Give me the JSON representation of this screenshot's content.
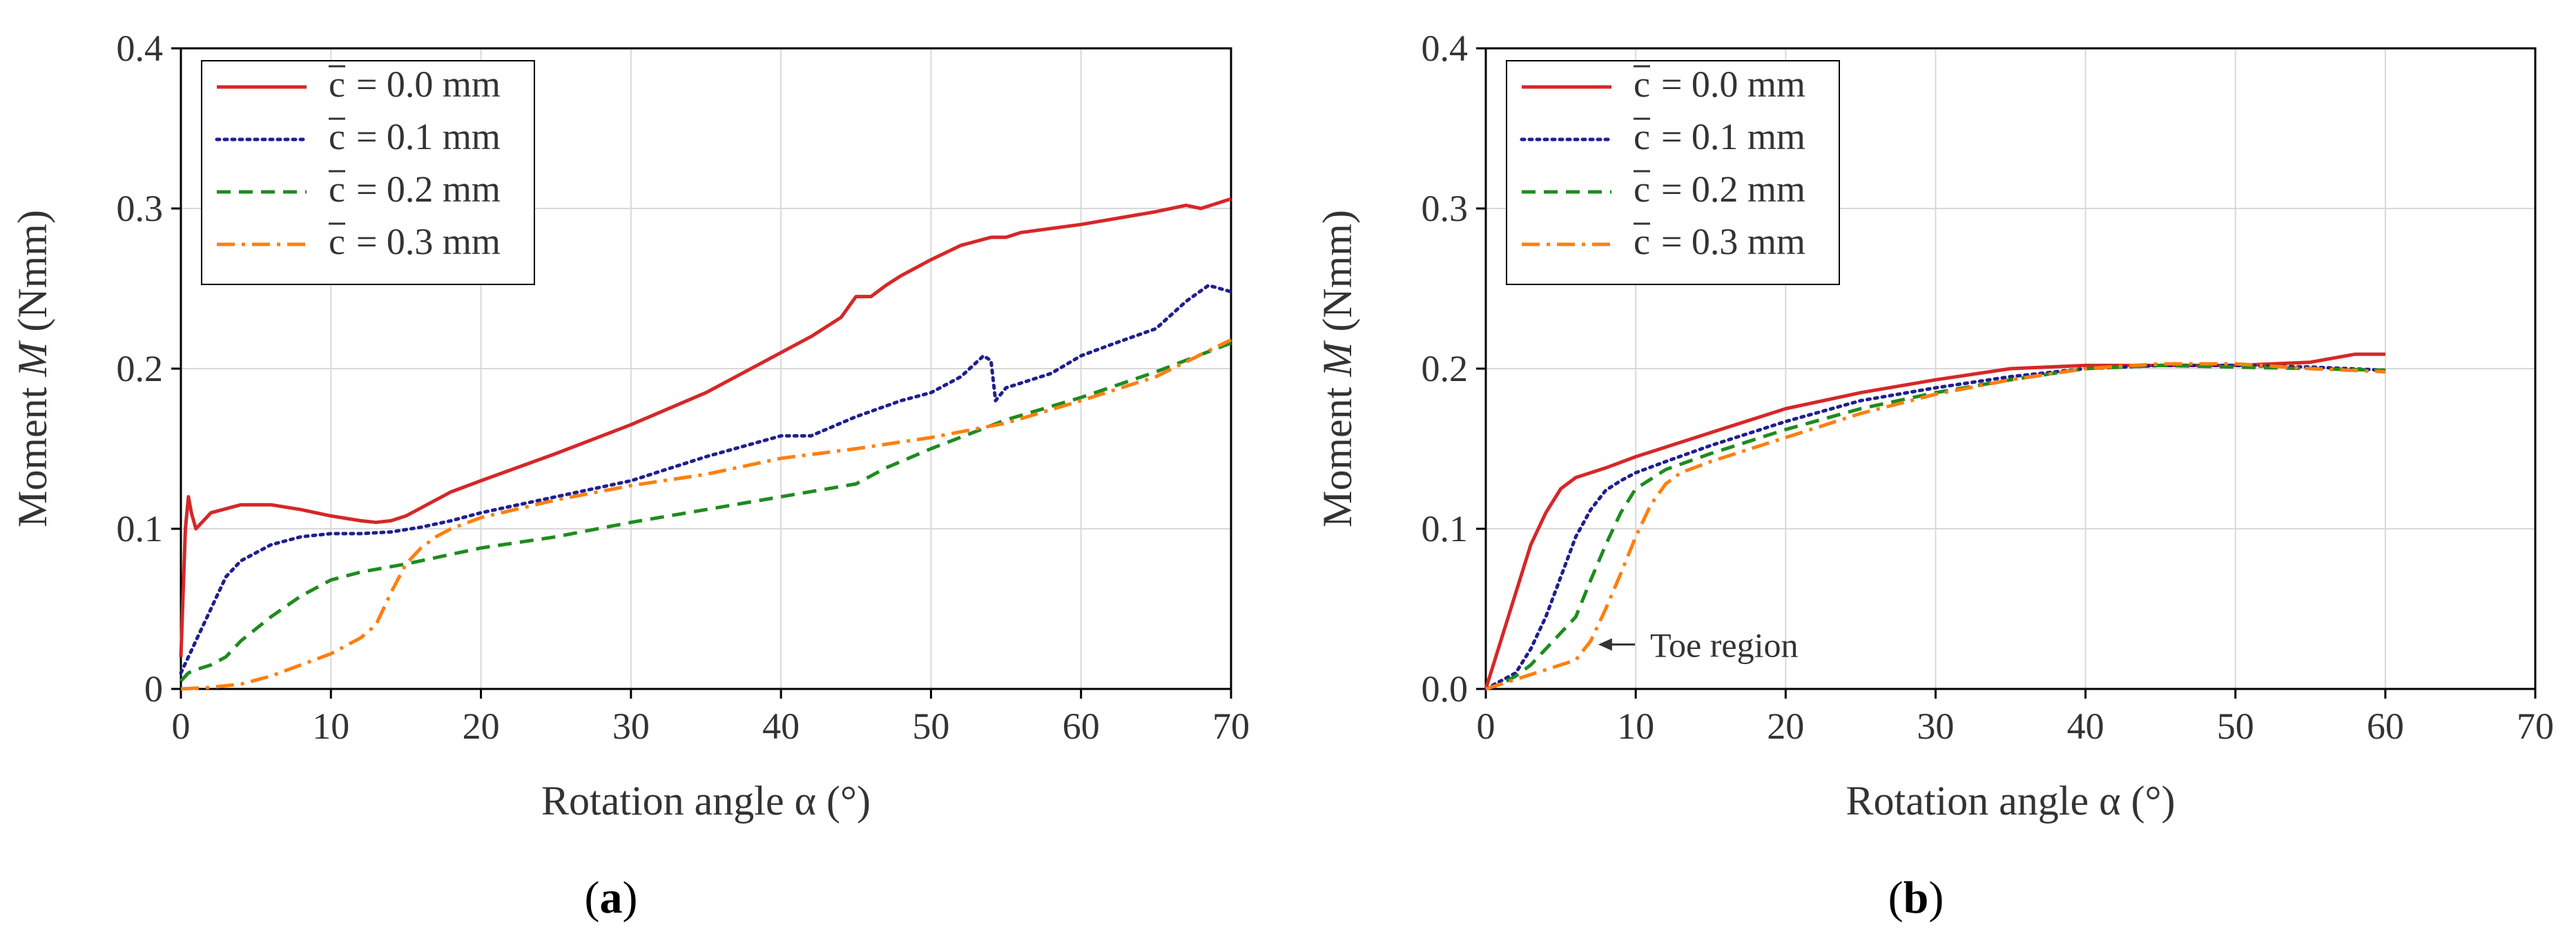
{
  "chart_data": [
    {
      "type": "line",
      "panel_label": "a",
      "xlabel": "Rotation angle α (°)",
      "ylabel": "Moment M (Nmm)",
      "ylabel_prefix": "Moment ",
      "ylabel_var": "M",
      "ylabel_suffix": " (Nmm)",
      "xlim": [
        0,
        70
      ],
      "ylim": [
        0,
        0.4
      ],
      "xticks": [
        0,
        10,
        20,
        30,
        40,
        50,
        60,
        70
      ],
      "xtick_labels": [
        "0",
        "10",
        "20",
        "30",
        "40",
        "50",
        "60",
        "70"
      ],
      "yticks": [
        0,
        0.1,
        0.2,
        0.3,
        0.4
      ],
      "ytick_labels": [
        "0",
        "0.1",
        "0.2",
        "0.3",
        "0.4"
      ],
      "grid": true,
      "legend_position": "top-left",
      "series": [
        {
          "name": "c̄ = 0.0 mm",
          "legend_prefix": "c",
          "legend_value": "= 0.0 mm",
          "color": "#d62728",
          "dash": "solid",
          "x": [
            0,
            0.3,
            0.5,
            0.7,
            1,
            2,
            4,
            6,
            8,
            10,
            12,
            13,
            14,
            15,
            16,
            17,
            18,
            20,
            25,
            30,
            35,
            40,
            42,
            44,
            45,
            46,
            47,
            48,
            50,
            52,
            54,
            55,
            56,
            60,
            65,
            67,
            68,
            69,
            70
          ],
          "y": [
            0.02,
            0.1,
            0.12,
            0.11,
            0.1,
            0.11,
            0.115,
            0.115,
            0.112,
            0.108,
            0.105,
            0.104,
            0.105,
            0.108,
            0.113,
            0.118,
            0.123,
            0.13,
            0.147,
            0.165,
            0.185,
            0.21,
            0.22,
            0.232,
            0.245,
            0.245,
            0.252,
            0.258,
            0.268,
            0.277,
            0.282,
            0.282,
            0.285,
            0.29,
            0.298,
            0.302,
            0.3,
            0.303,
            0.306
          ]
        },
        {
          "name": "c̄ = 0.1 mm",
          "legend_prefix": "c",
          "legend_value": "= 0.1 mm",
          "color": "#1f1f8f",
          "dash": "dotted",
          "x": [
            0,
            0.5,
            1,
            2,
            3,
            4,
            6,
            8,
            10,
            12,
            14,
            16,
            18,
            20,
            25,
            30,
            35,
            40,
            42,
            45,
            48,
            50,
            52,
            53.5,
            54,
            54.3,
            55,
            58,
            60,
            62,
            65,
            67,
            68.5,
            70
          ],
          "y": [
            0.01,
            0.02,
            0.03,
            0.05,
            0.07,
            0.08,
            0.09,
            0.095,
            0.097,
            0.097,
            0.098,
            0.101,
            0.105,
            0.11,
            0.12,
            0.13,
            0.145,
            0.158,
            0.158,
            0.17,
            0.18,
            0.185,
            0.195,
            0.208,
            0.205,
            0.18,
            0.188,
            0.197,
            0.208,
            0.215,
            0.225,
            0.242,
            0.252,
            0.248
          ]
        },
        {
          "name": "c̄ = 0.2 mm",
          "legend_prefix": "c",
          "legend_value": "= 0.2 mm",
          "color": "#1f8b1f",
          "dash": "dashed",
          "x": [
            0,
            0.5,
            1,
            2,
            3,
            4,
            6,
            8,
            10,
            12,
            15,
            18,
            20,
            25,
            30,
            35,
            40,
            45,
            47,
            50,
            55,
            60,
            65,
            70
          ],
          "y": [
            0.005,
            0.01,
            0.012,
            0.015,
            0.02,
            0.03,
            0.045,
            0.058,
            0.068,
            0.073,
            0.078,
            0.084,
            0.088,
            0.095,
            0.104,
            0.112,
            0.12,
            0.128,
            0.138,
            0.15,
            0.168,
            0.182,
            0.198,
            0.216
          ]
        },
        {
          "name": "c̄ = 0.3 mm",
          "legend_prefix": "c",
          "legend_value": "= 0.3 mm",
          "color": "#ff7f0e",
          "dash": "dashdot",
          "x": [
            0,
            2,
            4,
            6,
            8,
            10,
            12,
            13,
            14,
            15,
            16,
            17,
            18,
            20,
            25,
            30,
            35,
            40,
            45,
            50,
            55,
            60,
            65,
            70
          ],
          "y": [
            0,
            0.001,
            0.003,
            0.008,
            0.015,
            0.022,
            0.032,
            0.04,
            0.06,
            0.078,
            0.088,
            0.095,
            0.1,
            0.107,
            0.118,
            0.127,
            0.134,
            0.144,
            0.15,
            0.157,
            0.166,
            0.18,
            0.195,
            0.218
          ]
        }
      ]
    },
    {
      "type": "line",
      "panel_label": "b",
      "xlabel": "Rotation angle α (°)",
      "ylabel": "Moment M (Nmm)",
      "ylabel_prefix": "Moment ",
      "ylabel_var": "M",
      "ylabel_suffix": " (Nmm)",
      "xlim": [
        0,
        70
      ],
      "ylim": [
        0,
        0.4
      ],
      "xticks": [
        0,
        10,
        20,
        30,
        40,
        50,
        60,
        70
      ],
      "xtick_labels": [
        "0",
        "10",
        "20",
        "30",
        "40",
        "50",
        "60",
        "70"
      ],
      "yticks": [
        0,
        0.1,
        0.2,
        0.3,
        0.4
      ],
      "ytick_labels": [
        "0.0",
        "0.1",
        "0.2",
        "0.3",
        "0.4"
      ],
      "grid": true,
      "legend_position": "top-left",
      "annotation": {
        "text": "Toe region",
        "x": 10.5,
        "y": 0.02,
        "arrow_to_x": 7.5
      },
      "series": [
        {
          "name": "c̄ = 0.0 mm",
          "legend_prefix": "c",
          "legend_value": "= 0.0 mm",
          "color": "#d62728",
          "dash": "solid",
          "x": [
            0,
            1,
            2,
            3,
            4,
            5,
            6,
            8,
            10,
            15,
            20,
            25,
            30,
            35,
            40,
            45,
            50,
            55,
            58,
            60
          ],
          "y": [
            0,
            0.03,
            0.06,
            0.09,
            0.11,
            0.125,
            0.132,
            0.138,
            0.145,
            0.16,
            0.175,
            0.185,
            0.193,
            0.2,
            0.202,
            0.202,
            0.202,
            0.204,
            0.209,
            0.209
          ]
        },
        {
          "name": "c̄ = 0.1 mm",
          "legend_prefix": "c",
          "legend_value": "= 0.1 mm",
          "color": "#1f1f8f",
          "dash": "dotted",
          "x": [
            0,
            1,
            2,
            3,
            4,
            5,
            6,
            7,
            8,
            9,
            10,
            12,
            15,
            20,
            25,
            30,
            35,
            40,
            45,
            50,
            55,
            60
          ],
          "y": [
            0,
            0.005,
            0.01,
            0.025,
            0.045,
            0.07,
            0.095,
            0.112,
            0.124,
            0.13,
            0.135,
            0.142,
            0.152,
            0.167,
            0.18,
            0.188,
            0.195,
            0.2,
            0.202,
            0.202,
            0.201,
            0.199
          ]
        },
        {
          "name": "c̄ = 0.2 mm",
          "legend_prefix": "c",
          "legend_value": "= 0.2 mm",
          "color": "#1f8b1f",
          "dash": "dashed",
          "x": [
            0,
            1,
            2,
            3,
            4,
            5,
            6,
            7,
            8,
            9,
            10,
            12,
            15,
            20,
            25,
            30,
            35,
            40,
            45,
            50,
            55,
            60
          ],
          "y": [
            0,
            0.003,
            0.008,
            0.015,
            0.025,
            0.035,
            0.045,
            0.068,
            0.09,
            0.11,
            0.125,
            0.137,
            0.147,
            0.162,
            0.175,
            0.185,
            0.193,
            0.2,
            0.202,
            0.201,
            0.2,
            0.199
          ]
        },
        {
          "name": "c̄ = 0.3 mm",
          "legend_prefix": "c",
          "legend_value": "= 0.3 mm",
          "color": "#ff7f0e",
          "dash": "dashdot",
          "x": [
            0,
            2,
            4,
            6,
            7,
            8,
            9,
            10,
            11,
            12,
            13,
            15,
            20,
            25,
            30,
            35,
            40,
            45,
            50,
            55,
            60
          ],
          "y": [
            0,
            0.006,
            0.012,
            0.018,
            0.03,
            0.05,
            0.072,
            0.095,
            0.115,
            0.128,
            0.135,
            0.142,
            0.157,
            0.172,
            0.184,
            0.193,
            0.2,
            0.203,
            0.203,
            0.2,
            0.198
          ]
        }
      ]
    }
  ]
}
